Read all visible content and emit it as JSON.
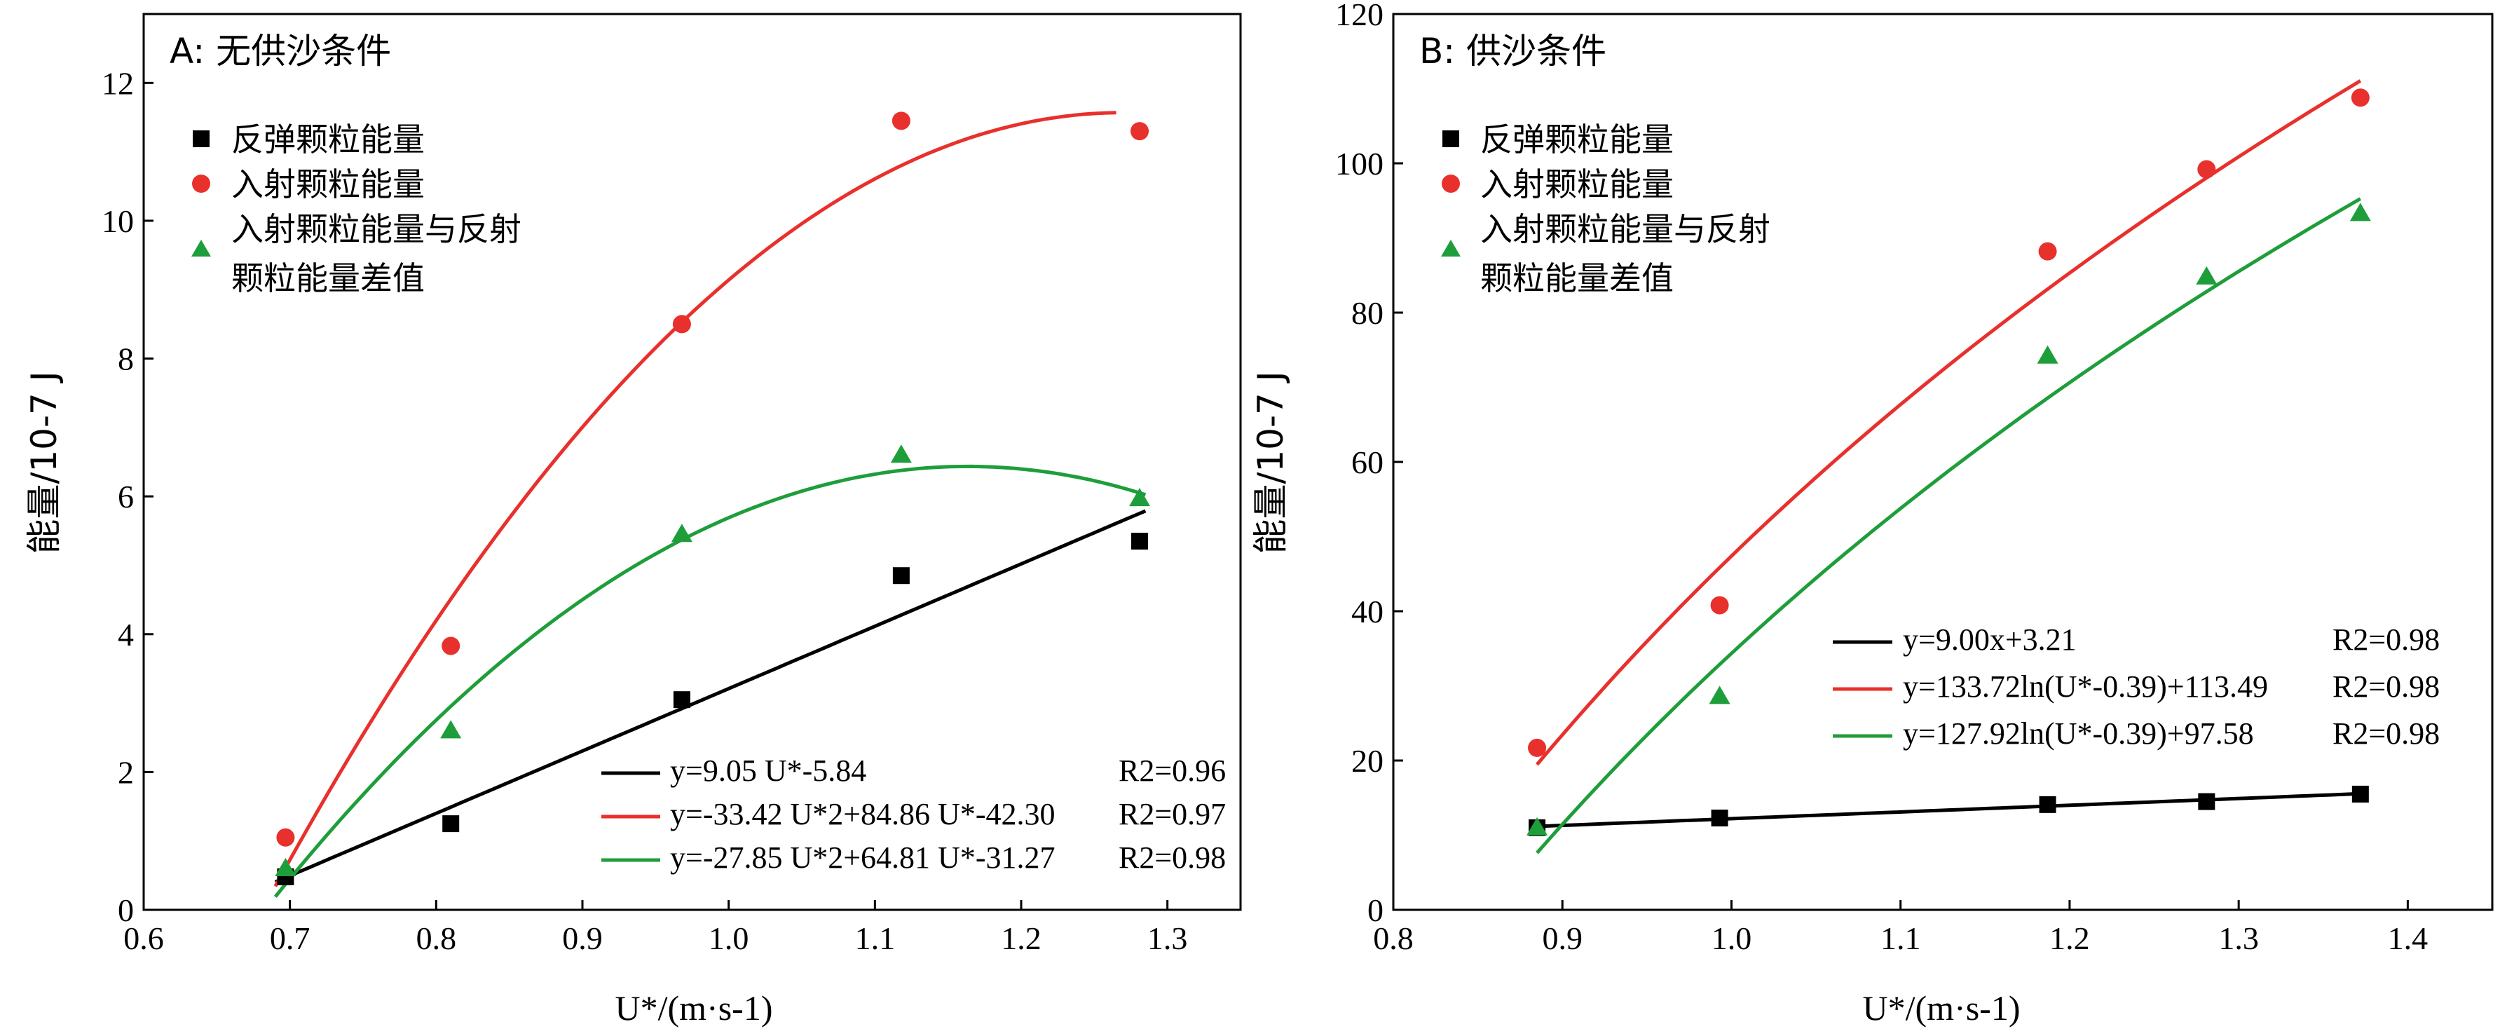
{
  "chart_data": [
    {
      "type": "scatter",
      "title": "A: 无供沙条件",
      "xlabel": "U*/(m·s-1)",
      "ylabel": "能量/10-7 J",
      "xlim": [
        0.6,
        1.35
      ],
      "ylim": [
        0,
        13
      ],
      "xticks": [
        "0.6",
        "0.7",
        "0.8",
        "0.9",
        "1.0",
        "1.1",
        "1.2",
        "1.3"
      ],
      "yticks": [
        "0",
        "2",
        "4",
        "6",
        "8",
        "10",
        "12"
      ],
      "legend_position": "top-left",
      "series": [
        {
          "name": "反弹颗粒能量",
          "marker": "square",
          "color": "#000000",
          "x": [
            0.697,
            0.81,
            0.968,
            1.118,
            1.281
          ],
          "y": [
            0.48,
            1.25,
            3.05,
            4.85,
            5.35
          ]
        },
        {
          "name": "入射颗粒能量",
          "marker": "circle",
          "color": "#e8302c",
          "x": [
            0.697,
            0.81,
            0.968,
            1.118,
            1.281
          ],
          "y": [
            1.05,
            3.83,
            8.5,
            11.45,
            11.3
          ]
        },
        {
          "name": "入射颗粒能量与反射颗粒能量差值",
          "marker": "triangle",
          "color": "#1e9e3a",
          "x": [
            0.697,
            0.81,
            0.968,
            1.118,
            1.281
          ],
          "y": [
            0.6,
            2.6,
            5.45,
            6.6,
            5.97
          ]
        }
      ],
      "fits": [
        {
          "label": "y=9.05 U*-5.84",
          "r2": "R2=0.96",
          "color": "#000000",
          "model": "poly",
          "coef": [
            -5.84,
            9.05,
            0
          ],
          "xrange": [
            0.69,
            1.285
          ]
        },
        {
          "label": "y=-33.42 U*2+84.86 U*-42.30",
          "r2": "R2=0.97",
          "color": "#e8302c",
          "model": "poly",
          "coef": [
            -42.3,
            84.86,
            -33.42
          ],
          "xrange": [
            0.69,
            1.265
          ]
        },
        {
          "label": "y=-27.85 U*2+64.81 U*-31.27",
          "r2": "R2=0.98",
          "color": "#1e9e3a",
          "model": "poly",
          "coef": [
            -31.27,
            64.81,
            -27.85
          ],
          "xrange": [
            0.69,
            1.285
          ]
        }
      ]
    },
    {
      "type": "scatter",
      "title": "B: 供沙条件",
      "xlabel": "U*/(m·s-1)",
      "ylabel": "能量/10-7 J",
      "xlim": [
        0.8,
        1.45
      ],
      "ylim": [
        0,
        120
      ],
      "xticks": [
        "0.8",
        "0.9",
        "1.0",
        "1.1",
        "1.2",
        "1.3",
        "1.4"
      ],
      "yticks": [
        "0",
        "20",
        "40",
        "60",
        "80",
        "100",
        "120"
      ],
      "legend_position": "top-left",
      "series": [
        {
          "name": "反弹颗粒能量",
          "marker": "square",
          "color": "#000000",
          "x": [
            0.885,
            0.993,
            1.187,
            1.281,
            1.372
          ],
          "y": [
            11.0,
            12.3,
            14.1,
            14.5,
            15.5
          ]
        },
        {
          "name": "入射颗粒能量",
          "marker": "circle",
          "color": "#e8302c",
          "x": [
            0.885,
            0.993,
            1.187,
            1.281,
            1.372
          ],
          "y": [
            21.7,
            40.8,
            88.2,
            99.2,
            108.8
          ]
        },
        {
          "name": "入射颗粒能量与反射颗粒能量差值",
          "marker": "triangle",
          "color": "#1e9e3a",
          "x": [
            0.885,
            0.993,
            1.187,
            1.281,
            1.372
          ],
          "y": [
            11.0,
            28.6,
            74.2,
            84.8,
            93.3
          ]
        }
      ],
      "fits": [
        {
          "label": "y=9.00x+3.21",
          "r2": "R2=0.98",
          "color": "#000000",
          "model": "lin",
          "a": 9.0,
          "b": 3.21,
          "xrange": [
            0.885,
            1.372
          ]
        },
        {
          "label": "y=133.72ln(U*-0.39)+113.49",
          "r2": "R2=0.98",
          "color": "#e8302c",
          "model": "log",
          "a": 133.72,
          "b": 113.49,
          "xrange": [
            0.885,
            1.372
          ]
        },
        {
          "label": "y=127.92ln(U*-0.39)+97.58",
          "r2": "R2=0.98",
          "color": "#1e9e3a",
          "model": "log",
          "a": 127.92,
          "b": 97.58,
          "xrange": [
            0.885,
            1.372
          ]
        }
      ]
    }
  ],
  "legend_lines": {
    "square": "反弹颗粒能量",
    "circle": "入射颗粒能量",
    "triangle_1": "入射颗粒能量与反射",
    "triangle_2": "颗粒能量差值"
  },
  "colors": {
    "black": "#000000",
    "red": "#e8302c",
    "green": "#1e9e3a"
  }
}
